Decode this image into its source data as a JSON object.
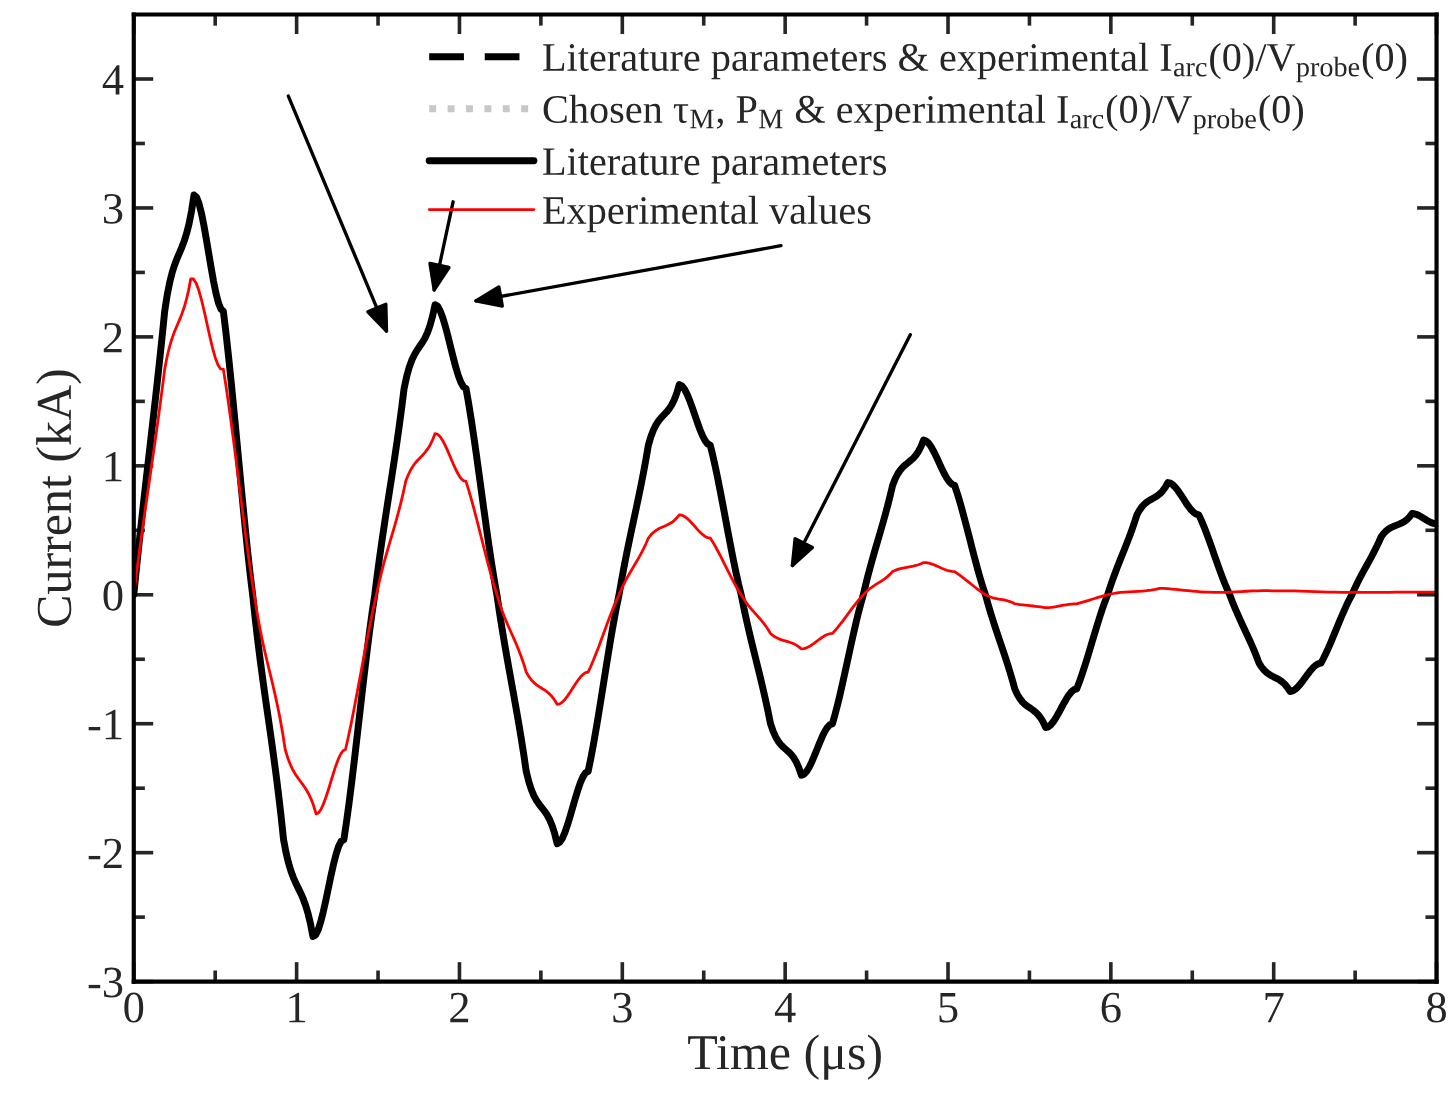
{
  "chart_data": {
    "type": "line",
    "xlabel": "Time (μs)",
    "ylabel": "Current (kA)",
    "xlim": [
      0,
      8
    ],
    "ylim": [
      -3,
      4.5
    ],
    "xticks": [
      0,
      1,
      2,
      3,
      4,
      5,
      6,
      7,
      8
    ],
    "yticks": [
      {
        "value": -3,
        "label": "-3"
      },
      {
        "value": -2,
        "label": "-2"
      },
      {
        "value": -1,
        "label": "-1"
      },
      0,
      1,
      2,
      3,
      4
    ],
    "grid": false,
    "legend": "top right",
    "series": [
      {
        "name": "Literature parameters & experimental I$_{arc}$(0)/V$_{probe}$(0)",
        "color": "#000000",
        "line_style": "dashed"
      },
      {
        "name": "Chosen τ$_{M}$, P$_{M}$ & experimental I$_{arc}$(0)/V$_{probe}$(0)",
        "color": "#c8c8c8",
        "line_style": "dotted"
      },
      {
        "name": "Literature parameters",
        "color": "#000000",
        "line_style": "solid",
        "x": [
          0,
          0.19,
          0.37,
          0.55,
          0.73,
          0.92,
          1.1,
          1.29,
          1.48,
          1.66,
          1.85,
          2.04,
          2.23,
          2.41,
          2.6,
          2.79,
          2.98,
          3.16,
          3.35,
          3.54,
          3.73,
          3.91,
          4.1,
          4.29,
          4.48,
          4.66,
          4.85,
          5.04,
          5.23,
          5.41,
          5.6,
          5.79,
          5.98,
          6.16,
          6.35,
          6.54,
          6.73,
          6.91,
          7.1,
          7.29,
          7.48,
          7.66,
          7.85,
          8.0
        ],
        "values": [
          0,
          2.2,
          3.1,
          2.2,
          0,
          -1.9,
          -2.65,
          -1.9,
          0,
          1.6,
          2.25,
          1.6,
          0,
          -1.37,
          -1.93,
          -1.37,
          0,
          1.16,
          1.63,
          1.16,
          0,
          -1.0,
          -1.4,
          -1.0,
          0,
          0.85,
          1.2,
          0.85,
          0,
          -0.73,
          -1.03,
          -0.73,
          0,
          0.62,
          0.87,
          0.62,
          0,
          -0.53,
          -0.75,
          -0.53,
          0,
          0.45,
          0.63,
          0.55
        ]
      },
      {
        "name": "Experimental values",
        "color": "#ff0000",
        "line_style": "solid",
        "x": [
          0,
          0.19,
          0.35,
          0.55,
          0.74,
          0.93,
          1.12,
          1.3,
          1.49,
          1.67,
          1.85,
          2.04,
          2.23,
          2.41,
          2.6,
          2.79,
          2.98,
          3.16,
          3.35,
          3.54,
          3.73,
          3.91,
          4.1,
          4.29,
          4.48,
          4.66,
          4.85,
          5.04,
          5.23,
          5.41,
          5.6,
          5.79,
          5.98,
          6.3,
          6.6,
          7.0,
          7.5,
          8.0
        ],
        "values": [
          0,
          1.75,
          2.45,
          1.75,
          0,
          -1.2,
          -1.7,
          -1.2,
          0,
          0.88,
          1.25,
          0.88,
          0,
          -0.6,
          -0.85,
          -0.6,
          0,
          0.44,
          0.62,
          0.44,
          0,
          -0.3,
          -0.42,
          -0.3,
          0,
          0.18,
          0.25,
          0.18,
          0,
          -0.07,
          -0.1,
          -0.07,
          0,
          0.05,
          0.02,
          0.03,
          0.02,
          0.02
        ]
      }
    ]
  }
}
